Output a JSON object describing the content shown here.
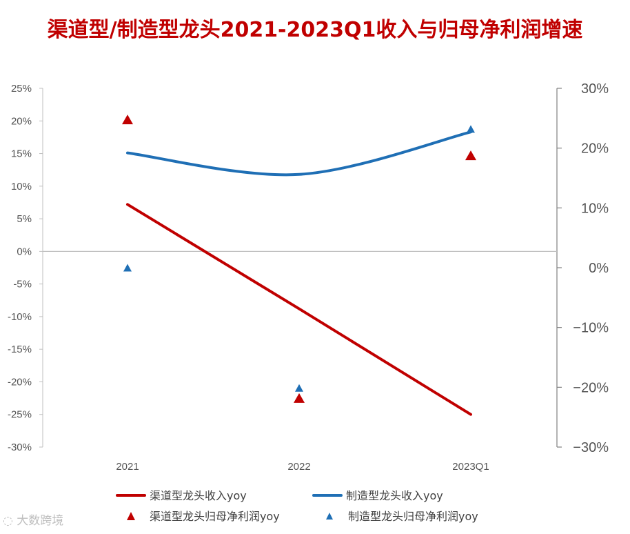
{
  "chart_data": {
    "type": "line",
    "title": "渠道型/制造型龙头2021-2023Q1收入与归母净利润增速",
    "categories": [
      "2021",
      "2022",
      "2023Q1"
    ],
    "left_axis": {
      "min": -30,
      "max": 25,
      "step": 5,
      "tick_labels": [
        "25%",
        "20%",
        "15%",
        "10%",
        "5%",
        "0%",
        "-5%",
        "-10%",
        "-15%",
        "-20%",
        "-25%",
        "-30%"
      ]
    },
    "right_axis": {
      "min": -30,
      "max": 30,
      "step": 10,
      "tick_labels": [
        "30%",
        "20%",
        "10%",
        "0%",
        "−10%",
        "−20%",
        "−30%"
      ]
    },
    "series": [
      {
        "name": "渠道型龙头收入yoy",
        "kind": "line",
        "axis": "left",
        "color": "#C00000",
        "values": [
          7.2,
          -8.8,
          -25.0
        ]
      },
      {
        "name": "制造型龙头收入yoy",
        "kind": "smooth-line",
        "axis": "left",
        "color": "#1F6FB5",
        "values": [
          15.1,
          11.8,
          18.3
        ]
      },
      {
        "name": "渠道型龙头归母净利润yoy",
        "kind": "marker",
        "axis": "right",
        "color": "#C00000",
        "values": [
          24.8,
          -21.8,
          18.8
        ]
      },
      {
        "name": "制造型龙头归母净利润yoy",
        "kind": "marker",
        "axis": "right",
        "color": "#1F6FB5",
        "values": [
          0.0,
          -20.1,
          23.2
        ]
      }
    ]
  },
  "watermark": "大数跨境"
}
